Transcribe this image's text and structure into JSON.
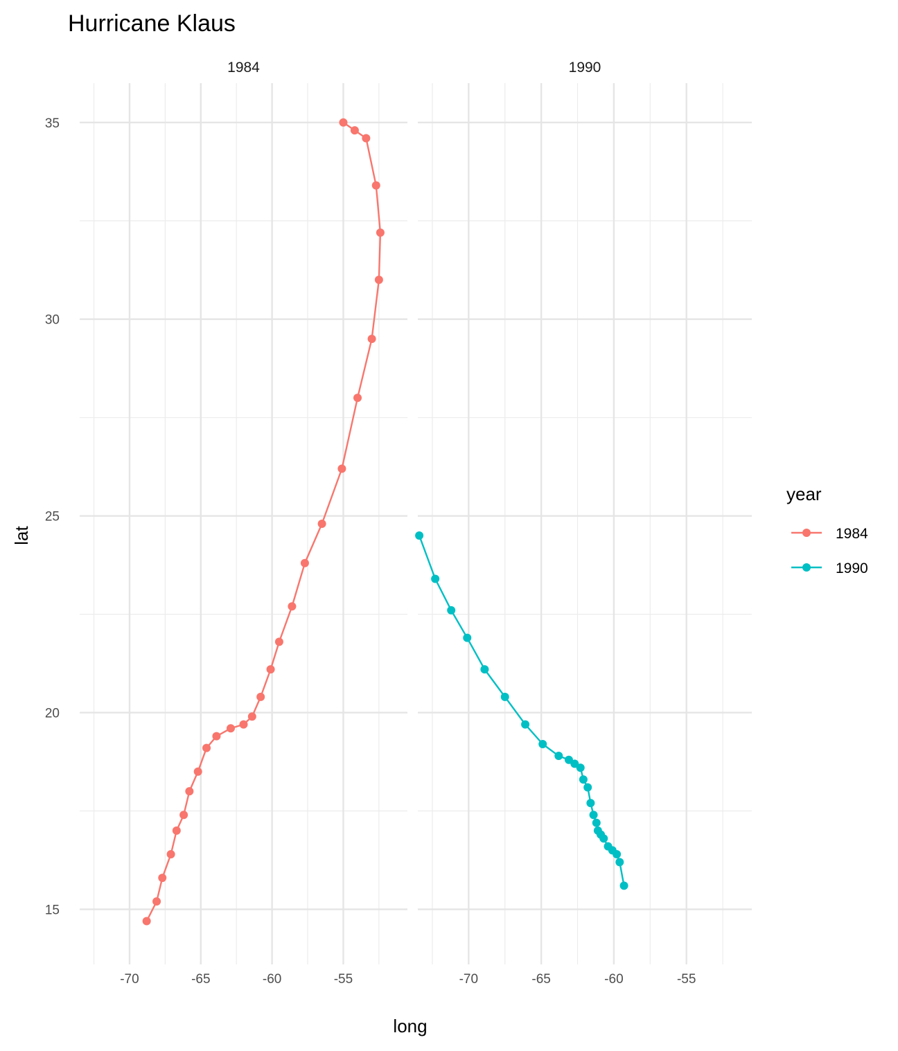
{
  "chart_data": {
    "type": "line",
    "title": "Hurricane Klaus",
    "xlabel": "long",
    "ylabel": "lat",
    "facets": [
      "1984",
      "1990"
    ],
    "xlim": [
      -73.5,
      -50.5
    ],
    "ylim": [
      13.6,
      36.0
    ],
    "x_ticks": [
      -70,
      -65,
      -60,
      -55
    ],
    "x_tick_labels": [
      "-70",
      "-65",
      "-60",
      "-55"
    ],
    "y_ticks": [
      15,
      20,
      25,
      30,
      35
    ],
    "y_tick_labels": [
      "15",
      "20",
      "25",
      "30",
      "35"
    ],
    "grid": true,
    "legend": {
      "title": "year",
      "position": "right"
    },
    "series": [
      {
        "name": "1984",
        "color": "#F8766D",
        "points": [
          [
            -68.8,
            14.7
          ],
          [
            -68.1,
            15.2
          ],
          [
            -67.7,
            15.8
          ],
          [
            -67.1,
            16.4
          ],
          [
            -66.7,
            17.0
          ],
          [
            -66.2,
            17.4
          ],
          [
            -65.8,
            18.0
          ],
          [
            -65.2,
            18.5
          ],
          [
            -64.6,
            19.1
          ],
          [
            -63.9,
            19.4
          ],
          [
            -62.9,
            19.6
          ],
          [
            -62.0,
            19.7
          ],
          [
            -61.4,
            19.9
          ],
          [
            -60.8,
            20.4
          ],
          [
            -60.1,
            21.1
          ],
          [
            -59.5,
            21.8
          ],
          [
            -58.6,
            22.7
          ],
          [
            -57.7,
            23.8
          ],
          [
            -56.5,
            24.8
          ],
          [
            -55.1,
            26.2
          ],
          [
            -54.0,
            28.0
          ],
          [
            -53.0,
            29.5
          ],
          [
            -52.5,
            31.0
          ],
          [
            -52.4,
            32.2
          ],
          [
            -52.7,
            33.4
          ],
          [
            -53.4,
            34.6
          ],
          [
            -54.2,
            34.8
          ],
          [
            -55.0,
            35.0
          ]
        ]
      },
      {
        "name": "1990",
        "color": "#00BFC4",
        "points": [
          [
            -73.4,
            24.5
          ],
          [
            -72.3,
            23.4
          ],
          [
            -71.2,
            22.6
          ],
          [
            -70.1,
            21.9
          ],
          [
            -68.9,
            21.1
          ],
          [
            -67.5,
            20.4
          ],
          [
            -66.1,
            19.7
          ],
          [
            -64.9,
            19.2
          ],
          [
            -63.8,
            18.9
          ],
          [
            -63.1,
            18.8
          ],
          [
            -62.7,
            18.7
          ],
          [
            -62.3,
            18.6
          ],
          [
            -62.1,
            18.3
          ],
          [
            -61.8,
            18.1
          ],
          [
            -61.6,
            17.7
          ],
          [
            -61.4,
            17.4
          ],
          [
            -61.2,
            17.2
          ],
          [
            -61.1,
            17.0
          ],
          [
            -60.9,
            16.9
          ],
          [
            -60.7,
            16.8
          ],
          [
            -60.4,
            16.6
          ],
          [
            -60.1,
            16.5
          ],
          [
            -59.8,
            16.4
          ],
          [
            -59.6,
            16.2
          ],
          [
            -59.3,
            15.6
          ]
        ]
      }
    ]
  }
}
